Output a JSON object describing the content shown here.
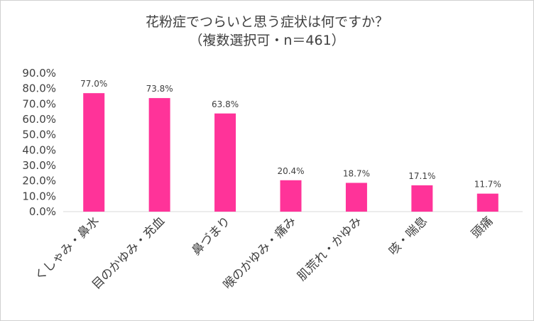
{
  "chart_data": {
    "type": "bar",
    "title": "花粉症でつらいと思う症状は何ですか？",
    "subtitle": "（複数選択可・n＝461）",
    "categories": [
      "くしゃみ・鼻水",
      "目のかゆみ・充血",
      "鼻づまり",
      "喉のかゆみ・痛み",
      "肌荒れ・かゆみ",
      "咳・喘息",
      "頭痛"
    ],
    "values": [
      77.0,
      73.8,
      63.8,
      20.4,
      18.7,
      17.1,
      11.7
    ],
    "value_labels": [
      "77.0%",
      "73.8%",
      "63.8%",
      "20.4%",
      "18.7%",
      "17.1%",
      "11.7%"
    ],
    "yticks": [
      "0.0%",
      "10.0%",
      "20.0%",
      "30.0%",
      "40.0%",
      "50.0%",
      "60.0%",
      "70.0%",
      "80.0%",
      "90.0%"
    ],
    "ylim": [
      0,
      90
    ],
    "grid": false,
    "legend": "none",
    "bar_color": "#ff3399",
    "axis_color": "#d9d9d9"
  }
}
